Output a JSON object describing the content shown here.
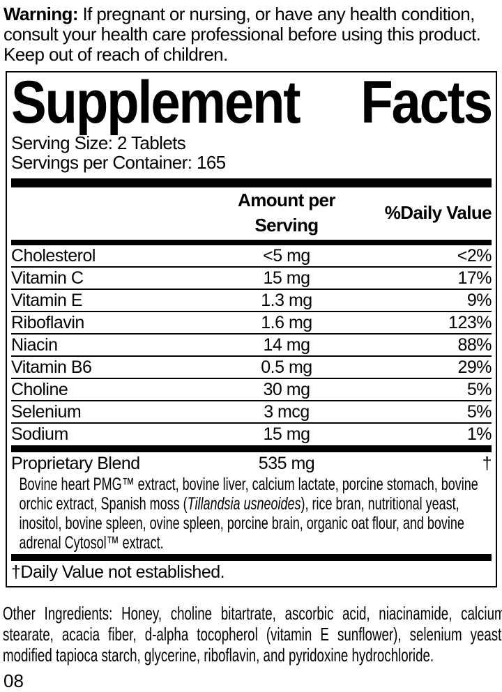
{
  "warning": {
    "label": "Warning:",
    "text": " If pregnant or nursing, or have any health condition, consult your health care professional before using this product. Keep out of reach of children."
  },
  "supplement_facts": {
    "title_left": "Supplement",
    "title_right": "Facts",
    "serving_size": "Serving Size: 2 Tablets",
    "servings_per_container": "Servings per Container: 165",
    "columns": {
      "amount": "Amount per Serving",
      "daily_value": "%Daily Value"
    },
    "rows": [
      {
        "name": "Cholesterol",
        "amount": "<5 mg",
        "daily_value": "<2%"
      },
      {
        "name": "Vitamin C",
        "amount": "15 mg",
        "daily_value": "17%"
      },
      {
        "name": "Vitamin E",
        "amount": "1.3 mg",
        "daily_value": "9%"
      },
      {
        "name": "Riboflavin",
        "amount": "1.6 mg",
        "daily_value": "123%"
      },
      {
        "name": "Niacin",
        "amount": "14 mg",
        "daily_value": "88%"
      },
      {
        "name": "Vitamin B6",
        "amount": "0.5 mg",
        "daily_value": "29%"
      },
      {
        "name": "Choline",
        "amount": "30 mg",
        "daily_value": "5%"
      },
      {
        "name": "Selenium",
        "amount": "3 mcg",
        "daily_value": "5%"
      },
      {
        "name": "Sodium",
        "amount": "15 mg",
        "daily_value": "1%"
      }
    ],
    "proprietary_blend": {
      "name": "Proprietary Blend",
      "amount": "535 mg",
      "daily_value": "†",
      "description_prefix": "Bovine heart PMG™ extract, bovine liver, calcium lactate, porcine stomach, bovine orchic extract, Spanish moss (",
      "description_latin": "Tillandsia usneoides",
      "description_suffix": "), rice bran, nutritional yeast, inositol, bovine spleen, ovine spleen, porcine brain, organic oat flour, and bovine adrenal Cytosol™ extract."
    },
    "footnote": "†Daily Value not established."
  },
  "other_ingredients": "Other Ingredients: Honey, choline bitartrate, ascorbic acid, niacinamide, calcium stearate, acacia fiber, d-alpha tocopherol (vitamin E sunflower), selenium yeast, modified tapioca starch, glycerine, riboflavin, and pyridoxine hydrochloride.",
  "page_code": "08",
  "colors": {
    "text": "#000000",
    "background": "#ffffff",
    "rule": "#000000"
  }
}
